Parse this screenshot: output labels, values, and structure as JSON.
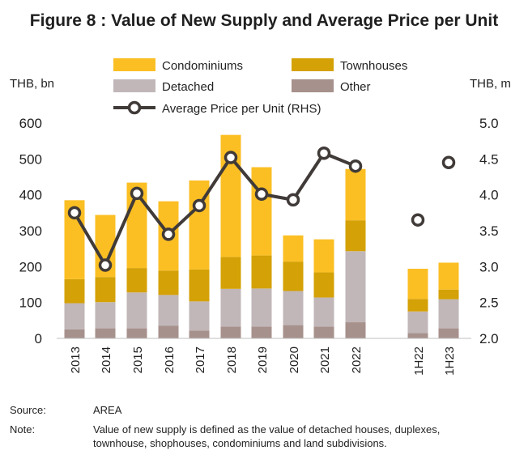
{
  "figure": {
    "title": "Figure 8 : Value of New Supply and Average Price per Unit"
  },
  "axes": {
    "left_unit": "THB, bn",
    "right_unit": "THB, m"
  },
  "footer": {
    "source_label": "Source:",
    "source_text": "AREA",
    "note_label": "Note:",
    "note_text": "Value of new supply is defined as the value of detached houses, duplexes, townhouse, shophouses, condominiums and land subdivisions."
  },
  "colors": {
    "condominiums": "#FBBF24",
    "townhouses": "#D4A106",
    "detached": "#C1B7B8",
    "other": "#A7918C",
    "price_line": "#403A38"
  },
  "chart_data": {
    "type": "bar",
    "stacked": true,
    "categories": [
      "2013",
      "2014",
      "2015",
      "2016",
      "2017",
      "2018",
      "2019",
      "2020",
      "2021",
      "2022",
      "1H22",
      "1H23"
    ],
    "series": [
      {
        "name": "Other",
        "axis": "left",
        "values": [
          25,
          28,
          28,
          35,
          22,
          33,
          33,
          37,
          33,
          45,
          15,
          28
        ]
      },
      {
        "name": "Detached",
        "axis": "left",
        "values": [
          73,
          73,
          100,
          86,
          81,
          105,
          106,
          95,
          81,
          198,
          60,
          81
        ]
      },
      {
        "name": "Townhouses",
        "axis": "left",
        "values": [
          67,
          70,
          68,
          68,
          89,
          89,
          92,
          82,
          70,
          86,
          35,
          27
        ]
      },
      {
        "name": "Condominiums",
        "axis": "left",
        "values": [
          220,
          173,
          238,
          193,
          248,
          340,
          246,
          73,
          92,
          143,
          84,
          75
        ]
      },
      {
        "name": "Average Price per Unit (RHS)",
        "type": "line",
        "axis": "right",
        "values": [
          3.75,
          3.02,
          4.02,
          3.45,
          3.85,
          4.52,
          4.01,
          3.93,
          4.58,
          4.4,
          3.65,
          4.45
        ]
      }
    ],
    "line_breaks_after": [
      "2022"
    ],
    "yticks_left": [
      "0",
      "100",
      "200",
      "300",
      "400",
      "500",
      "600"
    ],
    "yticks_right": [
      "2.0",
      "2.5",
      "3.0",
      "3.5",
      "4.0",
      "4.5",
      "5.0"
    ],
    "ylim": [
      0,
      600
    ],
    "ylim_right": [
      2.0,
      5.0
    ],
    "grid": false,
    "legend": {
      "placement": "top",
      "entries": [
        "Condominiums",
        "Townhouses",
        "Detached",
        "Other",
        "Average Price per Unit (RHS)"
      ]
    }
  }
}
